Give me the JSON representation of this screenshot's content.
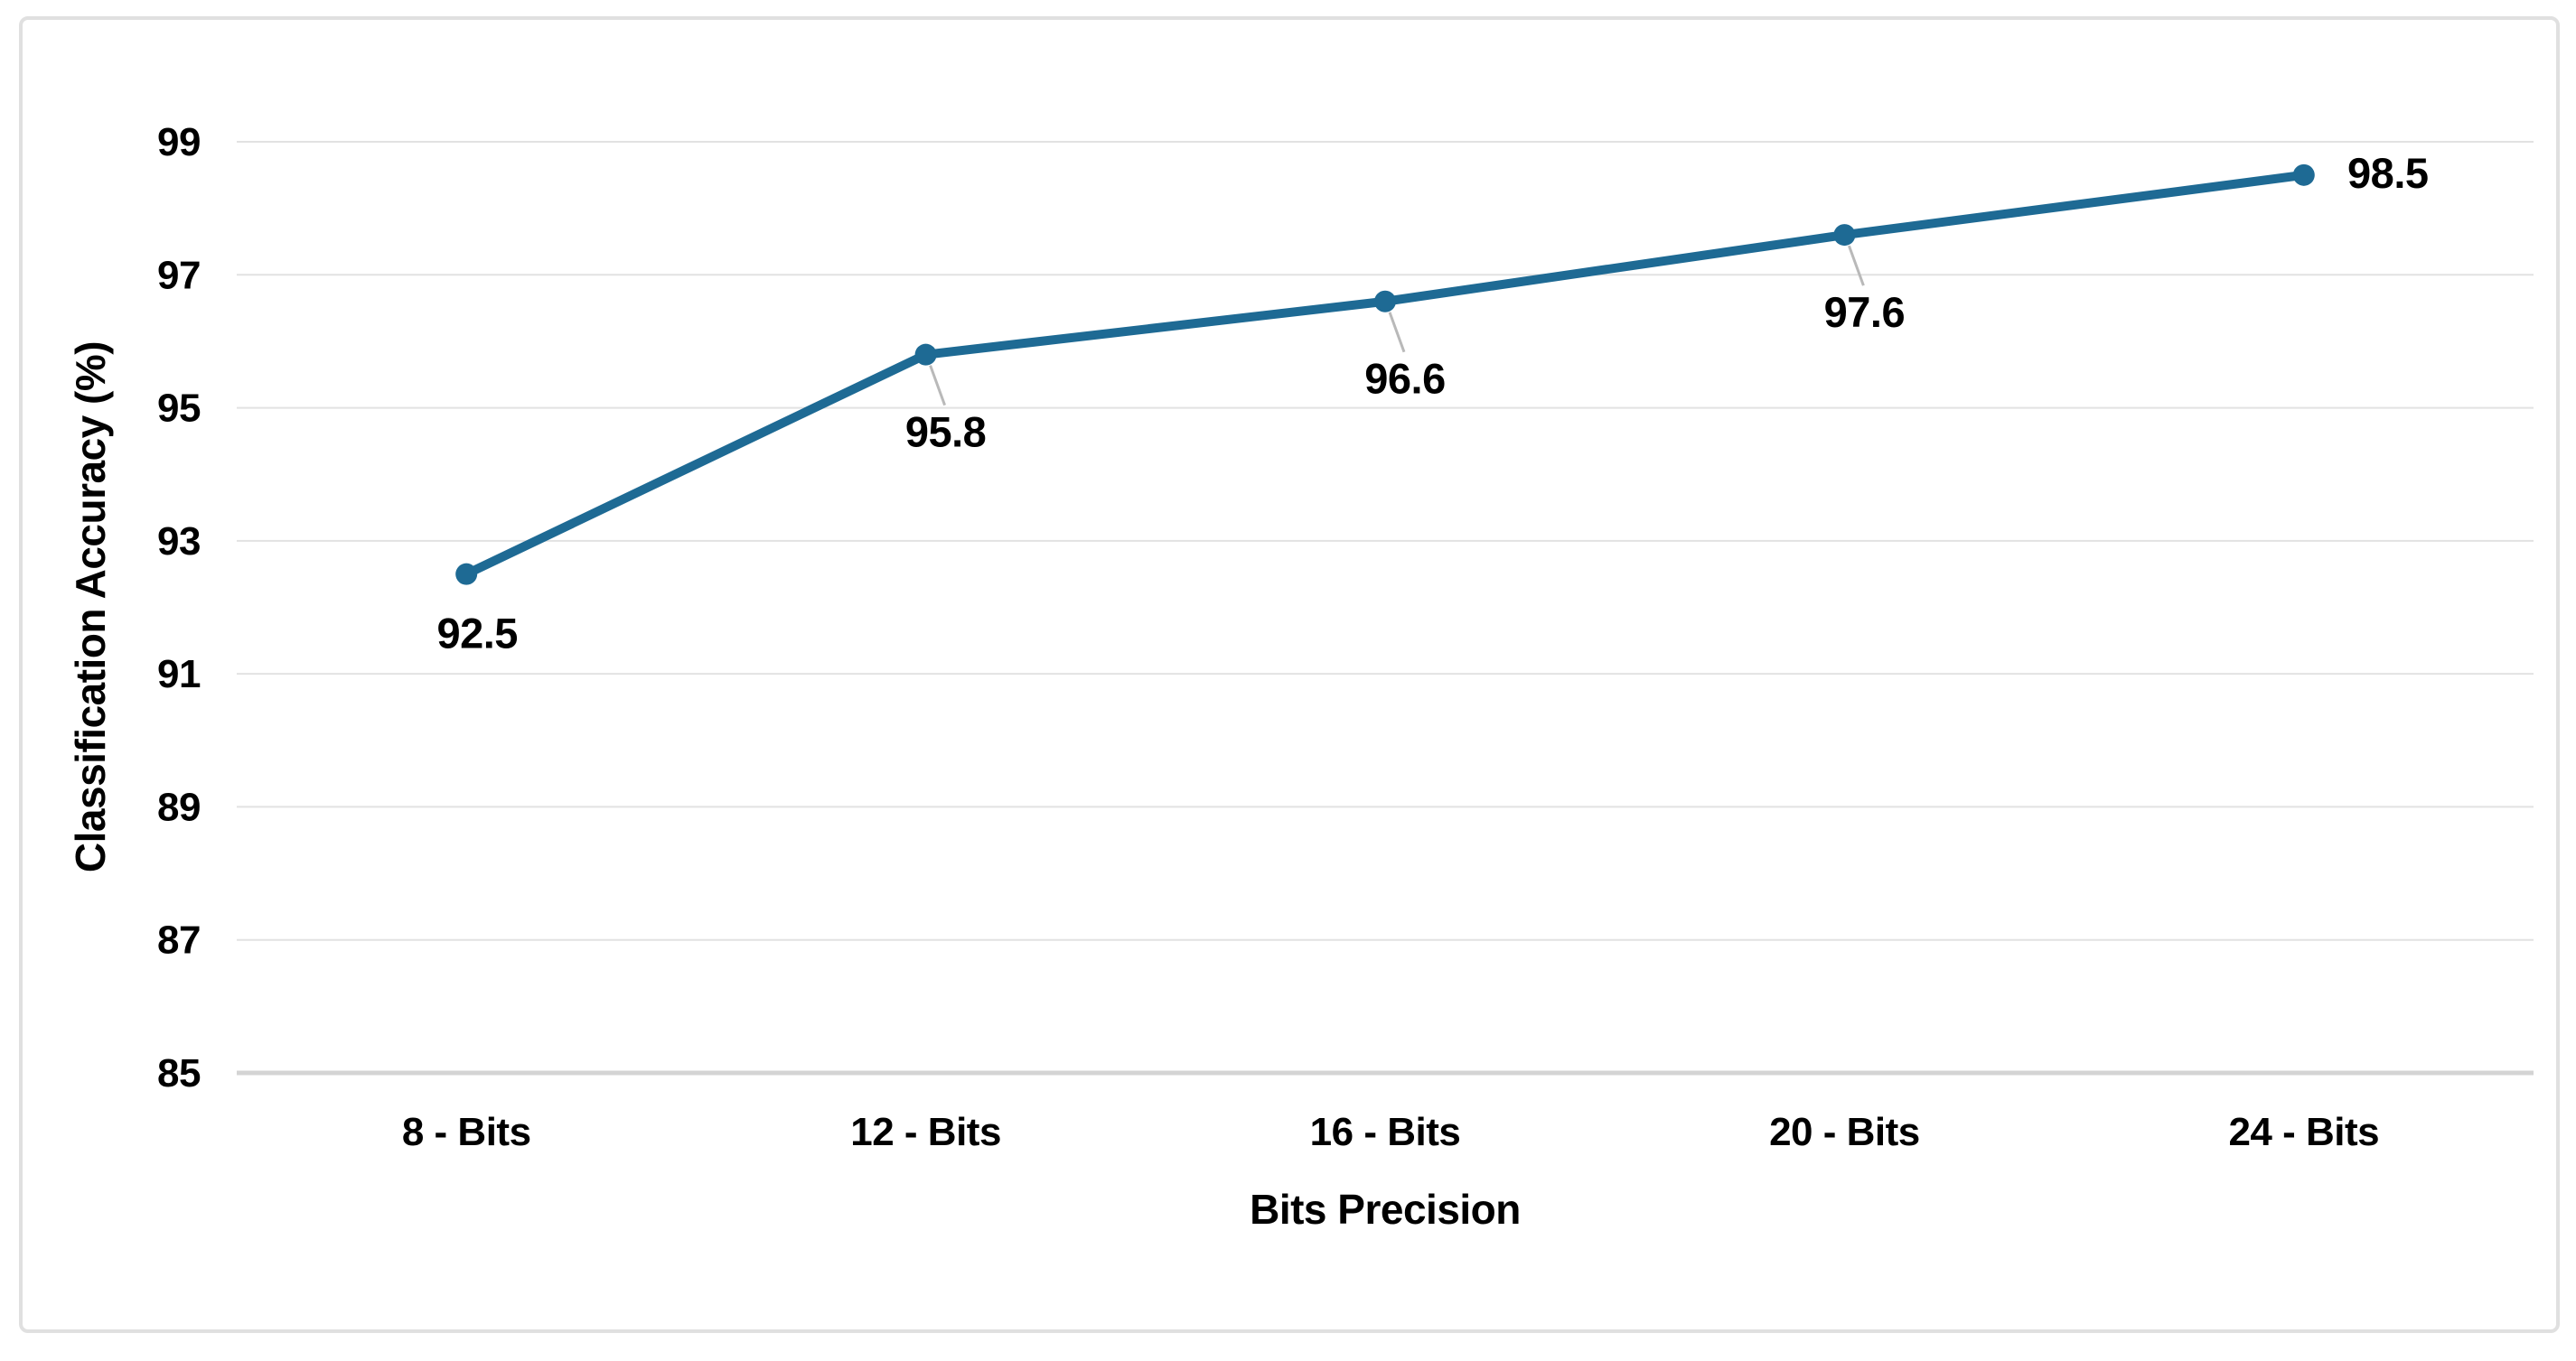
{
  "chart_data": {
    "type": "line",
    "title": "",
    "xlabel": "Bits Precision",
    "ylabel": "Classification Accuracy (%)",
    "categories": [
      "8 - Bits",
      "12 - Bits",
      "16 - Bits",
      "20 - Bits",
      "24 - Bits"
    ],
    "series": [
      {
        "name": "Classification Accuracy (%)",
        "values": [
          92.5,
          95.8,
          96.6,
          97.6,
          98.5
        ]
      }
    ],
    "data_labels": [
      "92.5",
      "95.8",
      "96.6",
      "97.6",
      "98.5"
    ],
    "yticks": [
      85,
      87,
      89,
      91,
      93,
      95,
      97,
      99
    ],
    "ylim": [
      85,
      99
    ],
    "xlim_categories": true,
    "grid": "horizontal",
    "legend": "none",
    "line_color": "#1E6A94",
    "marker": "circle",
    "gridline_color": "#E2E2E2",
    "axis_line_color": "#D4D4D4",
    "leader_line_color": "#B9B9B9",
    "border_color": "#E0E0E0",
    "text_color": "#000000",
    "label_placements": [
      "below",
      "below-leader",
      "below-leader",
      "below-leader",
      "right"
    ]
  }
}
